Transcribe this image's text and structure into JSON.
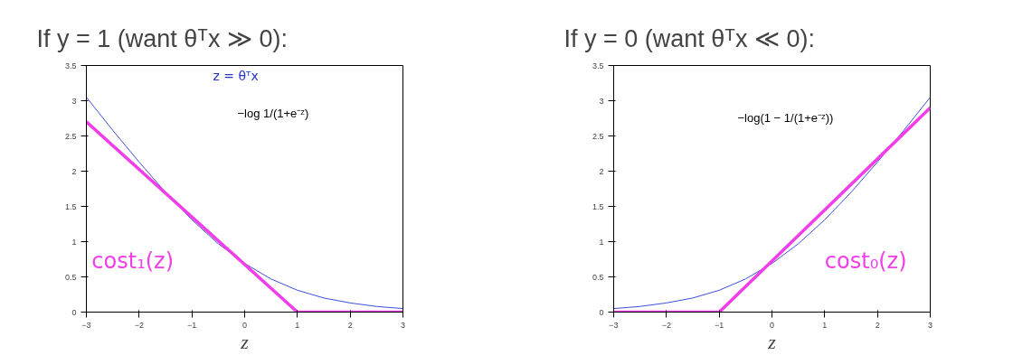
{
  "chart_data": [
    {
      "type": "line",
      "title": "If y = 1 (want θᵀx ≫ 0):",
      "xlabel": "z",
      "x": [
        -3,
        -2.5,
        -2,
        -1.5,
        -1,
        -0.5,
        0,
        0.5,
        1,
        1.5,
        2,
        2.5,
        3
      ],
      "xlim": [
        -3,
        3
      ],
      "xticks": [
        -3,
        -2,
        -1,
        0,
        1,
        2,
        3
      ],
      "ylim": [
        0,
        3.5
      ],
      "yticks": [
        0,
        0.5,
        1,
        1.5,
        2,
        2.5,
        3,
        3.5
      ],
      "grid": false,
      "legend": false,
      "annotations": [
        "z = θᵀx",
        "−log 1/(1+e⁻ᶻ)"
      ],
      "series": [
        {
          "color": "#3c4fd8",
          "values": [
            3.05,
            2.58,
            2.13,
            1.7,
            1.31,
            0.97,
            0.69,
            0.47,
            0.31,
            0.2,
            0.13,
            0.08,
            0.05
          ]
        },
        {
          "name": "cost₁(z)",
          "color": "#f23ee8",
          "x": [
            -3,
            1,
            3
          ],
          "values": [
            2.7,
            0,
            0
          ]
        }
      ]
    },
    {
      "type": "line",
      "title": "If y = 0 (want θᵀx ≪ 0):",
      "xlabel": "z",
      "x": [
        -3,
        -2.5,
        -2,
        -1.5,
        -1,
        -0.5,
        0,
        0.5,
        1,
        1.5,
        2,
        2.5,
        3
      ],
      "xlim": [
        -3,
        3
      ],
      "xticks": [
        -3,
        -2,
        -1,
        0,
        1,
        2,
        3
      ],
      "ylim": [
        0,
        3.5
      ],
      "yticks": [
        0,
        0.5,
        1,
        1.5,
        2,
        2.5,
        3,
        3.5
      ],
      "grid": false,
      "legend": false,
      "annotations": [
        "−log(1 − 1/(1+e⁻ᶻ))"
      ],
      "series": [
        {
          "color": "#3c4fd8",
          "values": [
            0.05,
            0.08,
            0.13,
            0.2,
            0.31,
            0.47,
            0.69,
            0.97,
            1.31,
            1.7,
            2.13,
            2.58,
            3.05
          ]
        },
        {
          "name": "cost₀(z)",
          "color": "#f23ee8",
          "x": [
            -3,
            -1,
            3
          ],
          "values": [
            0,
            0,
            2.9
          ]
        }
      ]
    }
  ]
}
